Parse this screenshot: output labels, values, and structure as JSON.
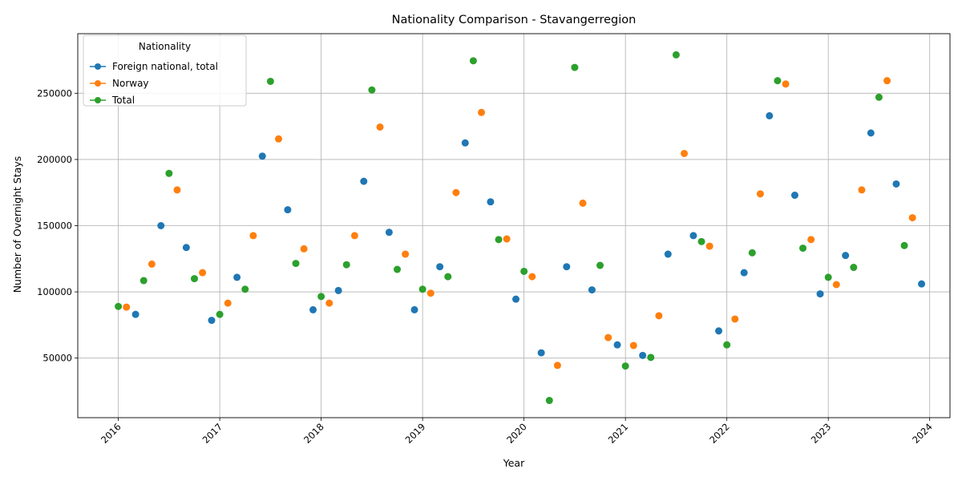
{
  "chart_data": {
    "type": "scatter",
    "title": "Nationality Comparison - Stavangerregion",
    "xlabel": "Year",
    "ylabel": "Number of Overnight Stays",
    "xlim": [
      2015.6,
      2024.2
    ],
    "ylim": [
      5000,
      295000
    ],
    "x_ticks": [
      2016,
      2017,
      2018,
      2019,
      2020,
      2021,
      2022,
      2023,
      2024
    ],
    "y_ticks": [
      50000,
      100000,
      150000,
      200000,
      250000
    ],
    "grid": true,
    "legend": {
      "title": "Nationality",
      "placement": "top-left"
    },
    "series": [
      {
        "name": "Foreign national, total",
        "color": "#1f77b4",
        "points": [
          [
            2016.17,
            83000
          ],
          [
            2016.42,
            150000
          ],
          [
            2016.67,
            133500
          ],
          [
            2016.92,
            78500
          ],
          [
            2017.17,
            111000
          ],
          [
            2017.42,
            202500
          ],
          [
            2017.67,
            162000
          ],
          [
            2017.92,
            86500
          ],
          [
            2018.17,
            101000
          ],
          [
            2018.42,
            183500
          ],
          [
            2018.67,
            145000
          ],
          [
            2018.92,
            86500
          ],
          [
            2019.17,
            119000
          ],
          [
            2019.42,
            212500
          ],
          [
            2019.67,
            168000
          ],
          [
            2019.92,
            94500
          ],
          [
            2020.17,
            54000
          ],
          [
            2020.42,
            119000
          ],
          [
            2020.67,
            101500
          ],
          [
            2020.92,
            60000
          ],
          [
            2021.17,
            52000
          ],
          [
            2021.42,
            128500
          ],
          [
            2021.67,
            142500
          ],
          [
            2021.92,
            70500
          ],
          [
            2022.17,
            114500
          ],
          [
            2022.42,
            233000
          ],
          [
            2022.67,
            173000
          ],
          [
            2022.92,
            98500
          ],
          [
            2023.17,
            127500
          ],
          [
            2023.42,
            220000
          ],
          [
            2023.67,
            181500
          ],
          [
            2023.92,
            106000
          ]
        ]
      },
      {
        "name": "Norway",
        "color": "#ff7f0e",
        "points": [
          [
            2016.08,
            88500
          ],
          [
            2016.33,
            121000
          ],
          [
            2016.58,
            177000
          ],
          [
            2016.83,
            114500
          ],
          [
            2017.08,
            91500
          ],
          [
            2017.33,
            142500
          ],
          [
            2017.58,
            215500
          ],
          [
            2017.83,
            132500
          ],
          [
            2018.08,
            91500
          ],
          [
            2018.33,
            142500
          ],
          [
            2018.58,
            224500
          ],
          [
            2018.83,
            128500
          ],
          [
            2019.08,
            99000
          ],
          [
            2019.33,
            175000
          ],
          [
            2019.58,
            235500
          ],
          [
            2019.83,
            140000
          ],
          [
            2020.08,
            111500
          ],
          [
            2020.33,
            44500
          ],
          [
            2020.58,
            167000
          ],
          [
            2020.83,
            65500
          ],
          [
            2021.08,
            59500
          ],
          [
            2021.33,
            82000
          ],
          [
            2021.58,
            204500
          ],
          [
            2021.83,
            134500
          ],
          [
            2022.08,
            79500
          ],
          [
            2022.33,
            174000
          ],
          [
            2022.58,
            257000
          ],
          [
            2022.83,
            139500
          ],
          [
            2023.08,
            105500
          ],
          [
            2023.33,
            177000
          ],
          [
            2023.58,
            259500
          ],
          [
            2023.83,
            156000
          ]
        ]
      },
      {
        "name": "Total",
        "color": "#2ca02c",
        "points": [
          [
            2016.0,
            89000
          ],
          [
            2016.25,
            108500
          ],
          [
            2016.5,
            189500
          ],
          [
            2016.75,
            110000
          ],
          [
            2017.0,
            83000
          ],
          [
            2017.25,
            102000
          ],
          [
            2017.5,
            259000
          ],
          [
            2017.75,
            121500
          ],
          [
            2018.0,
            96500
          ],
          [
            2018.25,
            120500
          ],
          [
            2018.5,
            252500
          ],
          [
            2018.75,
            117000
          ],
          [
            2019.0,
            102000
          ],
          [
            2019.25,
            111500
          ],
          [
            2019.5,
            274500
          ],
          [
            2019.75,
            139500
          ],
          [
            2020.0,
            115500
          ],
          [
            2020.25,
            18000
          ],
          [
            2020.5,
            269500
          ],
          [
            2020.75,
            120000
          ],
          [
            2021.0,
            44000
          ],
          [
            2021.25,
            50500
          ],
          [
            2021.5,
            279000
          ],
          [
            2021.75,
            138000
          ],
          [
            2022.0,
            60000
          ],
          [
            2022.25,
            129500
          ],
          [
            2022.5,
            259500
          ],
          [
            2022.75,
            133000
          ],
          [
            2023.0,
            111000
          ],
          [
            2023.25,
            118500
          ],
          [
            2023.5,
            247000
          ],
          [
            2023.75,
            135000
          ]
        ]
      }
    ]
  }
}
